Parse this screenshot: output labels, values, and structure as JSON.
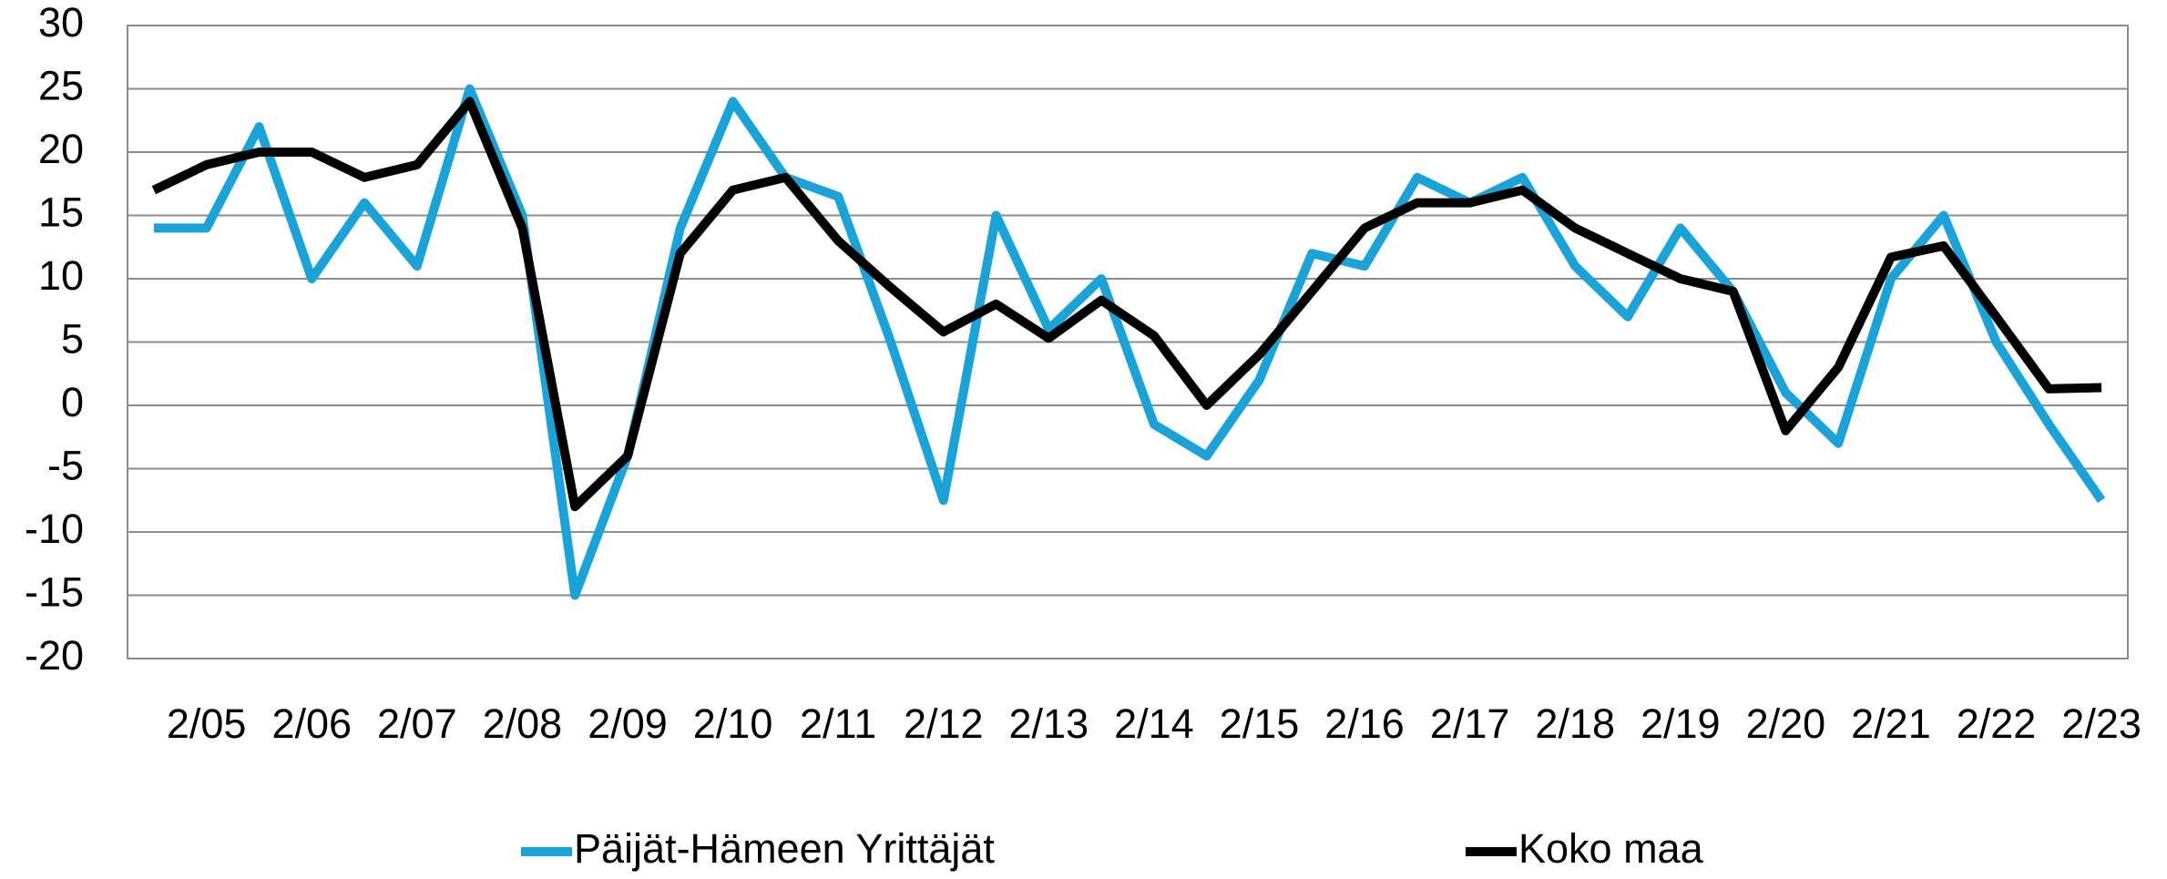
{
  "chart_data": {
    "type": "line",
    "categories": [
      null,
      "2/05",
      null,
      "2/06",
      null,
      "2/07",
      null,
      "2/08",
      null,
      "2/09",
      null,
      "2/10",
      null,
      "2/11",
      null,
      "2/12",
      null,
      "2/13",
      null,
      "2/14",
      null,
      "2/15",
      null,
      "2/16",
      null,
      "2/17",
      null,
      "2/18",
      null,
      "2/19",
      null,
      "2/20",
      null,
      "2/21",
      null,
      "2/22",
      null,
      "2/23"
    ],
    "series": [
      {
        "name": "Päijät-Hämeen Yrittäjät",
        "color": "#1aa3d9",
        "values": [
          14,
          14,
          22,
          10,
          16,
          11,
          25,
          15,
          -15,
          -4,
          14,
          24,
          18,
          16.5,
          5,
          -7.5,
          15,
          6,
          10,
          -1.5,
          -4,
          2,
          12,
          11,
          18,
          16,
          18,
          11,
          7,
          14,
          9,
          1,
          -3,
          10,
          15,
          5,
          -1.5,
          -7.5
        ]
      },
      {
        "name": "Koko maa",
        "color": "#000000",
        "values": [
          17,
          19,
          20,
          20,
          18,
          19,
          24,
          14,
          -8,
          -4,
          12,
          17,
          18,
          13,
          9.3,
          5.8,
          8,
          5.3,
          8.3,
          5.5,
          0,
          4,
          9,
          14,
          16,
          16,
          17,
          14,
          12,
          10,
          9,
          -2,
          3,
          11.7,
          12.6,
          7,
          1.3,
          1.4
        ]
      }
    ],
    "ylim": [
      -20,
      30
    ],
    "yticks": [
      -20,
      -15,
      -10,
      -5,
      0,
      5,
      10,
      15,
      20,
      25,
      30
    ],
    "grid": true,
    "legend": "bottom"
  }
}
